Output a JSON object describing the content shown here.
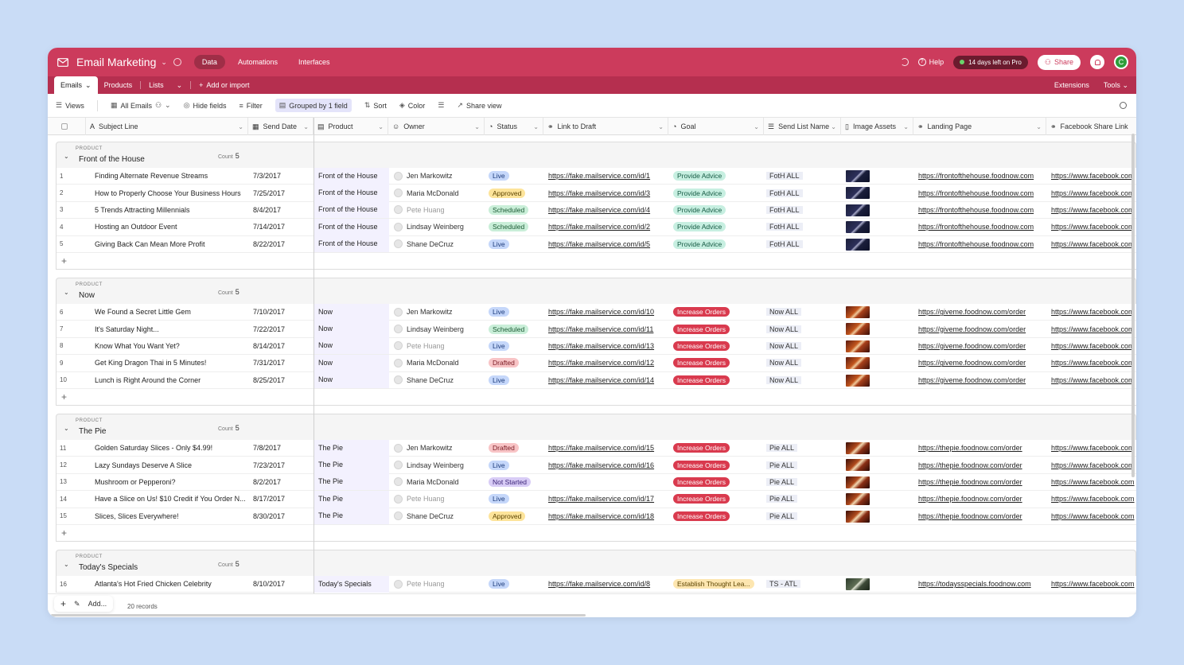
{
  "app": {
    "title": "Email Marketing",
    "nav": [
      "Data",
      "Automations",
      "Interfaces"
    ],
    "help_label": "Help",
    "trial_label": "14 days left on Pro",
    "share_label": "Share",
    "avatar_initial": "C",
    "accent_color": "#cc3b5c"
  },
  "tables": {
    "items": [
      "Emails",
      "Products",
      "Lists"
    ],
    "add_label": "Add or import",
    "extensions_label": "Extensions",
    "tools_label": "Tools"
  },
  "viewbar": {
    "views": "Views",
    "current_view": "All Emails",
    "hide_fields": "Hide fields",
    "filter": "Filter",
    "grouped": "Grouped by 1 field",
    "sort": "Sort",
    "color": "Color",
    "share_view": "Share view"
  },
  "columns": [
    "Subject Line",
    "Send Date",
    "Product",
    "Owner",
    "Status",
    "Link to Draft",
    "Goal",
    "Send List Name",
    "Image Assets",
    "Landing Page",
    "Facebook Share Link"
  ],
  "group_label": "PRODUCT",
  "count_label": "Count",
  "groups": [
    {
      "name": "Front of the House",
      "count": "5",
      "thumb": "house",
      "rows": [
        {
          "n": "1",
          "subject": "Finding Alternate Revenue Streams",
          "date": "7/3/2017",
          "product": "Front of the House",
          "owner": "Jen Markowitz",
          "owner_muted": false,
          "status": "Live",
          "link": "https://fake.mailservice.com/id/1",
          "goal": "Provide Advice",
          "list": "FotH ALL",
          "landing": "https://frontofthehouse.foodnow.com",
          "fb": "https://www.facebook.com"
        },
        {
          "n": "2",
          "subject": "How to Properly Choose Your Business Hours",
          "date": "7/25/2017",
          "product": "Front of the House",
          "owner": "Maria McDonald",
          "owner_muted": false,
          "status": "Approved",
          "link": "https://fake.mailservice.com/id/3",
          "goal": "Provide Advice",
          "list": "FotH ALL",
          "landing": "https://frontofthehouse.foodnow.com",
          "fb": "https://www.facebook.com"
        },
        {
          "n": "3",
          "subject": "5 Trends Attracting Millennials",
          "date": "8/4/2017",
          "product": "Front of the House",
          "owner": "Pete Huang",
          "owner_muted": true,
          "status": "Scheduled",
          "link": "https://fake.mailservice.com/id/4",
          "goal": "Provide Advice",
          "list": "FotH ALL",
          "landing": "https://frontofthehouse.foodnow.com",
          "fb": "https://www.facebook.com"
        },
        {
          "n": "4",
          "subject": "Hosting an Outdoor Event",
          "date": "7/14/2017",
          "product": "Front of the House",
          "owner": "Lindsay Weinberg",
          "owner_muted": false,
          "status": "Scheduled",
          "link": "https://fake.mailservice.com/id/2",
          "goal": "Provide Advice",
          "list": "FotH ALL",
          "landing": "https://frontofthehouse.foodnow.com",
          "fb": "https://www.facebook.com"
        },
        {
          "n": "5",
          "subject": "Giving Back Can Mean More Profit",
          "date": "8/22/2017",
          "product": "Front of the House",
          "owner": "Shane DeCruz",
          "owner_muted": false,
          "status": "Live",
          "link": "https://fake.mailservice.com/id/5",
          "goal": "Provide Advice",
          "list": "FotH ALL",
          "landing": "https://frontofthehouse.foodnow.com",
          "fb": "https://www.facebook.com"
        }
      ]
    },
    {
      "name": "Now",
      "count": "5",
      "thumb": "now",
      "rows": [
        {
          "n": "6",
          "subject": "We Found a Secret Little Gem",
          "date": "7/10/2017",
          "product": "Now",
          "owner": "Jen Markowitz",
          "owner_muted": false,
          "status": "Live",
          "link": "https://fake.mailservice.com/id/10",
          "goal": "Increase Orders",
          "list": "Now ALL",
          "landing": "https://giveme.foodnow.com/order",
          "fb": "https://www.facebook.com"
        },
        {
          "n": "7",
          "subject": "It's Saturday Night...",
          "date": "7/22/2017",
          "product": "Now",
          "owner": "Lindsay Weinberg",
          "owner_muted": false,
          "status": "Scheduled",
          "link": "https://fake.mailservice.com/id/11",
          "goal": "Increase Orders",
          "list": "Now ALL",
          "landing": "https://giveme.foodnow.com/order",
          "fb": "https://www.facebook.com"
        },
        {
          "n": "8",
          "subject": "Know What You Want Yet?",
          "date": "8/14/2017",
          "product": "Now",
          "owner": "Pete Huang",
          "owner_muted": true,
          "status": "Live",
          "link": "https://fake.mailservice.com/id/13",
          "goal": "Increase Orders",
          "list": "Now ALL",
          "landing": "https://giveme.foodnow.com/order",
          "fb": "https://www.facebook.com"
        },
        {
          "n": "9",
          "subject": "Get King Dragon Thai in 5 Minutes!",
          "date": "7/31/2017",
          "product": "Now",
          "owner": "Maria McDonald",
          "owner_muted": false,
          "status": "Drafted",
          "link": "https://fake.mailservice.com/id/12",
          "goal": "Increase Orders",
          "list": "Now ALL",
          "landing": "https://giveme.foodnow.com/order",
          "fb": "https://www.facebook.com"
        },
        {
          "n": "10",
          "subject": "Lunch is Right Around the Corner",
          "date": "8/25/2017",
          "product": "Now",
          "owner": "Shane DeCruz",
          "owner_muted": false,
          "status": "Live",
          "link": "https://fake.mailservice.com/id/14",
          "goal": "Increase Orders",
          "list": "Now ALL",
          "landing": "https://giveme.foodnow.com/order",
          "fb": "https://www.facebook.com"
        }
      ]
    },
    {
      "name": "The Pie",
      "count": "5",
      "thumb": "pie",
      "rows": [
        {
          "n": "11",
          "subject": "Golden Saturday Slices - Only $4.99!",
          "date": "7/8/2017",
          "product": "The Pie",
          "owner": "Jen Markowitz",
          "owner_muted": false,
          "status": "Drafted",
          "link": "https://fake.mailservice.com/id/15",
          "goal": "Increase Orders",
          "list": "Pie ALL",
          "landing": "https://thepie.foodnow.com/order",
          "fb": "https://www.facebook.com"
        },
        {
          "n": "12",
          "subject": "Lazy Sundays Deserve A Slice",
          "date": "7/23/2017",
          "product": "The Pie",
          "owner": "Lindsay Weinberg",
          "owner_muted": false,
          "status": "Live",
          "link": "https://fake.mailservice.com/id/16",
          "goal": "Increase Orders",
          "list": "Pie ALL",
          "landing": "https://thepie.foodnow.com/order",
          "fb": "https://www.facebook.com"
        },
        {
          "n": "13",
          "subject": "Mushroom or Pepperoni?",
          "date": "8/2/2017",
          "product": "The Pie",
          "owner": "Maria McDonald",
          "owner_muted": false,
          "status": "Not Started",
          "link": "",
          "goal": "Increase Orders",
          "list": "Pie ALL",
          "landing": "https://thepie.foodnow.com/order",
          "fb": "https://www.facebook.com"
        },
        {
          "n": "14",
          "subject": "Have a Slice on Us! $10 Credit if You Order N...",
          "date": "8/17/2017",
          "product": "The Pie",
          "owner": "Pete Huang",
          "owner_muted": true,
          "status": "Live",
          "link": "https://fake.mailservice.com/id/17",
          "goal": "Increase Orders",
          "list": "Pie ALL",
          "landing": "https://thepie.foodnow.com/order",
          "fb": "https://www.facebook.com"
        },
        {
          "n": "15",
          "subject": "Slices, Slices Everywhere!",
          "date": "8/30/2017",
          "product": "The Pie",
          "owner": "Shane DeCruz",
          "owner_muted": false,
          "status": "Approved",
          "link": "https://fake.mailservice.com/id/18",
          "goal": "Increase Orders",
          "list": "Pie ALL",
          "landing": "https://thepie.foodnow.com/order",
          "fb": "https://www.facebook.com"
        }
      ]
    },
    {
      "name": "Today's Specials",
      "count": "5",
      "thumb": "spec",
      "rows": [
        {
          "n": "16",
          "subject": "Atlanta's Hot Fried Chicken Celebrity",
          "date": "8/10/2017",
          "product": "Today's Specials",
          "owner": "Pete Huang",
          "owner_muted": true,
          "status": "Live",
          "link": "https://fake.mailservice.com/id/8",
          "goal": "Establish Thought Lea...",
          "list": "TS - ATL",
          "landing": "https://todaysspecials.foodnow.com",
          "fb": "https://www.facebook.com"
        }
      ]
    }
  ],
  "footer": {
    "add_label": "Add...",
    "records": "20 records"
  }
}
